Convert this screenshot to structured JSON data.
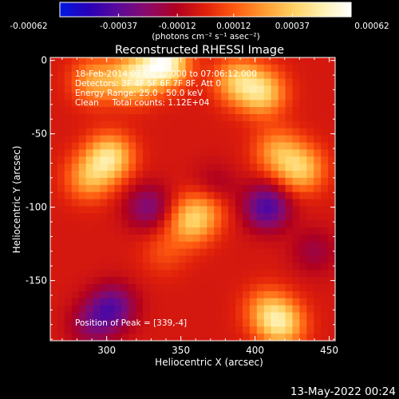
{
  "chart_data": {
    "type": "heatmap",
    "title": "Reconstructed RHESSI Image",
    "xlabel": "Heliocentric X (arcsec)",
    "ylabel": "Heliocentric Y (arcsec)",
    "xlim": [
      262,
      454
    ],
    "ylim": [
      -191,
      2
    ],
    "x_ticks": [
      300,
      350,
      400,
      450
    ],
    "y_ticks": [
      0,
      -50,
      -100,
      -150
    ],
    "colorbar": {
      "ticks": [
        "-0.00062",
        "-0.00037",
        "-0.00012",
        "0.00012",
        "0.00037",
        "0.00062"
      ],
      "range": [
        -0.00062,
        0.00062
      ],
      "unit_label": "(photons cm⁻² s⁻¹ asec⁻²)",
      "colormap": [
        "#0018e0",
        "#2a00b8",
        "#5a0a9a",
        "#8a0a6a",
        "#b00020",
        "#e0200a",
        "#ff5a10",
        "#ff9a30",
        "#ffd060",
        "#fff0b0",
        "#ffffff"
      ]
    },
    "annotations": [
      "18-Feb-2014 07:00:12.000 to 07:06:12.000",
      "Detectors: 3F 4F 5F 6F 7F 8F, Att 0",
      "Energy Range: 25.0 - 50.0 keV",
      "Clean     Total counts: 1.12E+04",
      "Position of Peak = [339,-4]"
    ],
    "peak": [
      339,
      -4
    ],
    "sources": [
      {
        "x": 339,
        "y": -2,
        "value": 0.00062
      },
      {
        "x": 318,
        "y": -12,
        "value": 0.00045
      },
      {
        "x": 292,
        "y": -14,
        "value": 0.0003
      },
      {
        "x": 388,
        "y": -14,
        "value": 0.00035
      },
      {
        "x": 405,
        "y": -22,
        "value": 0.0004
      },
      {
        "x": 302,
        "y": -66,
        "value": 0.00045
      },
      {
        "x": 288,
        "y": -80,
        "value": 0.0003
      },
      {
        "x": 415,
        "y": -62,
        "value": 0.00028
      },
      {
        "x": 431,
        "y": -74,
        "value": 0.00038
      },
      {
        "x": 357,
        "y": -110,
        "value": 0.00035
      },
      {
        "x": 368,
        "y": -98,
        "value": 0.00022
      },
      {
        "x": 418,
        "y": -180,
        "value": 0.0004
      },
      {
        "x": 408,
        "y": -170,
        "value": 0.00025
      },
      {
        "x": 339,
        "y": -130,
        "value": 0.00012
      },
      {
        "x": 328,
        "y": -100,
        "value": -0.00025
      },
      {
        "x": 372,
        "y": -88,
        "value": -0.00018
      },
      {
        "x": 408,
        "y": -100,
        "value": -0.00038
      },
      {
        "x": 304,
        "y": -168,
        "value": -0.00032
      },
      {
        "x": 290,
        "y": -180,
        "value": -0.0002
      },
      {
        "x": 440,
        "y": -130,
        "value": -0.00015
      }
    ]
  },
  "footer": {
    "timestamp": "13-May-2022 00:24"
  }
}
